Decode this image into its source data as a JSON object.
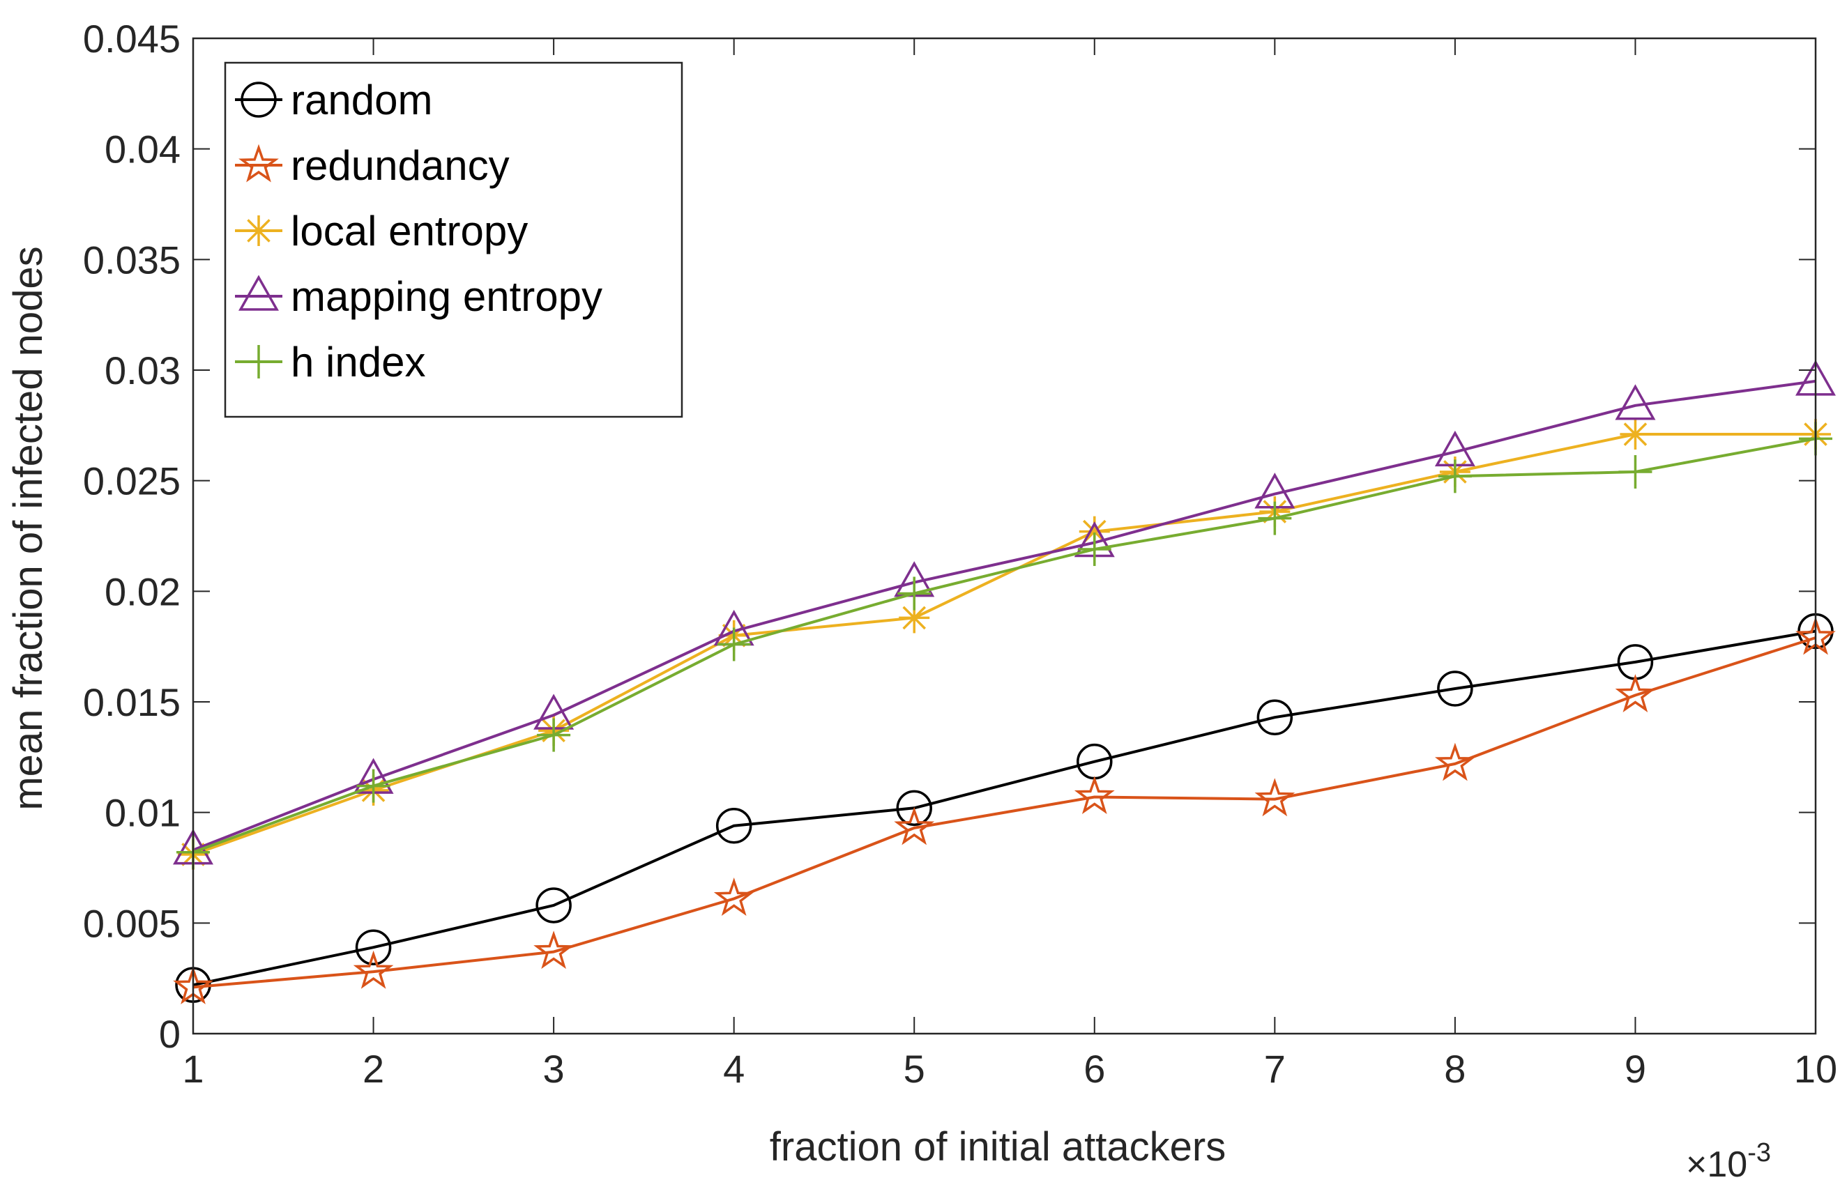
{
  "chart_data": {
    "type": "line",
    "title": "",
    "xlabel": "fraction of initial attackers",
    "ylabel": "mean fraction of infected nodes",
    "x_exponent_label": "×10",
    "x_exponent_power": "-3",
    "xlim": [
      1,
      10
    ],
    "ylim": [
      0,
      0.045
    ],
    "x_ticks": [
      1,
      2,
      3,
      4,
      5,
      6,
      7,
      8,
      9,
      10
    ],
    "x_tick_labels": [
      "1",
      "2",
      "3",
      "4",
      "5",
      "6",
      "7",
      "8",
      "9",
      "10"
    ],
    "y_ticks": [
      0,
      0.005,
      0.01,
      0.015,
      0.02,
      0.025,
      0.03,
      0.035,
      0.04,
      0.045
    ],
    "y_tick_labels": [
      "0",
      "0.005",
      "0.01",
      "0.015",
      "0.02",
      "0.025",
      "0.03",
      "0.035",
      "0.04",
      "0.045"
    ],
    "grid": false,
    "legend_position": "top-left",
    "x": [
      1,
      2,
      3,
      4,
      5,
      6,
      7,
      8,
      9,
      10
    ],
    "series": [
      {
        "name": "random",
        "color": "#000000",
        "marker": "circle",
        "values": [
          0.0022,
          0.0039,
          0.0058,
          0.0094,
          0.0102,
          0.0123,
          0.0143,
          0.0156,
          0.0168,
          0.0182
        ]
      },
      {
        "name": "redundancy",
        "color": "#D95319",
        "marker": "star",
        "values": [
          0.0021,
          0.0028,
          0.0037,
          0.0061,
          0.0093,
          0.0107,
          0.0106,
          0.0122,
          0.0153,
          0.0179
        ]
      },
      {
        "name": "local entropy",
        "color": "#EDB120",
        "marker": "asterisk",
        "values": [
          0.0081,
          0.011,
          0.0137,
          0.018,
          0.0188,
          0.0227,
          0.0236,
          0.0254,
          0.0271,
          0.0271
        ]
      },
      {
        "name": "mapping entropy",
        "color": "#7E2F8E",
        "marker": "triangle",
        "values": [
          0.0083,
          0.0115,
          0.0144,
          0.0182,
          0.0204,
          0.0222,
          0.0244,
          0.0263,
          0.0284,
          0.0295
        ]
      },
      {
        "name": "h index",
        "color": "#77AC30",
        "marker": "plus",
        "values": [
          0.0082,
          0.0112,
          0.0135,
          0.0176,
          0.0199,
          0.0219,
          0.0233,
          0.0252,
          0.0254,
          0.0269
        ]
      }
    ]
  }
}
